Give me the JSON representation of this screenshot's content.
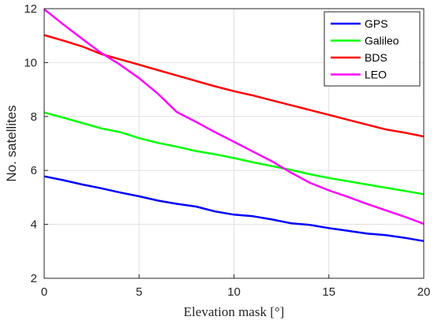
{
  "chart_data": {
    "type": "line",
    "xlabel": "Elevation mask [°]",
    "ylabel": "No. satellites",
    "xlim": [
      0,
      20
    ],
    "ylim": [
      2,
      12
    ],
    "xticks": [
      0,
      5,
      10,
      15,
      20
    ],
    "yticks": [
      2,
      4,
      6,
      8,
      10,
      12
    ],
    "grid": true,
    "legend_position": "top-right",
    "series": [
      {
        "name": "GPS",
        "color": "#0000ff",
        "x": [
          0,
          1,
          2,
          3,
          4,
          5,
          6,
          7,
          8,
          9,
          10,
          11,
          12,
          13,
          14,
          15,
          16,
          17,
          18,
          19,
          20
        ],
        "y": [
          5.78,
          5.64,
          5.48,
          5.34,
          5.18,
          5.04,
          4.88,
          4.76,
          4.66,
          4.48,
          4.36,
          4.3,
          4.18,
          4.04,
          3.98,
          3.86,
          3.76,
          3.66,
          3.6,
          3.5,
          3.38
        ]
      },
      {
        "name": "Galileo",
        "color": "#00ff00",
        "x": [
          0,
          1,
          2,
          3,
          4,
          5,
          6,
          7,
          8,
          9,
          10,
          11,
          12,
          13,
          14,
          15,
          16,
          17,
          18,
          19,
          20
        ],
        "y": [
          8.15,
          7.96,
          7.76,
          7.56,
          7.42,
          7.2,
          7.02,
          6.88,
          6.72,
          6.6,
          6.46,
          6.3,
          6.16,
          6.02,
          5.86,
          5.72,
          5.6,
          5.48,
          5.36,
          5.24,
          5.12
        ]
      },
      {
        "name": "BDS",
        "color": "#ff0000",
        "x": [
          0,
          1,
          2,
          3,
          4,
          5,
          6,
          7,
          8,
          9,
          10,
          11,
          12,
          13,
          14,
          15,
          16,
          17,
          18,
          19,
          20
        ],
        "y": [
          11.02,
          10.82,
          10.6,
          10.32,
          10.12,
          9.92,
          9.72,
          9.52,
          9.32,
          9.12,
          8.94,
          8.78,
          8.6,
          8.42,
          8.24,
          8.06,
          7.88,
          7.7,
          7.52,
          7.4,
          7.26
        ]
      },
      {
        "name": "LEO",
        "color": "#ff00ff",
        "x": [
          0,
          1,
          2,
          3,
          4,
          5,
          6,
          7,
          8,
          9,
          10,
          11,
          12,
          13,
          14,
          15,
          16,
          17,
          18,
          19,
          20
        ],
        "y": [
          11.98,
          11.42,
          10.88,
          10.36,
          9.92,
          9.42,
          8.84,
          8.16,
          7.8,
          7.42,
          7.06,
          6.7,
          6.34,
          5.92,
          5.54,
          5.26,
          5.02,
          4.76,
          4.52,
          4.28,
          4.02
        ]
      }
    ]
  }
}
